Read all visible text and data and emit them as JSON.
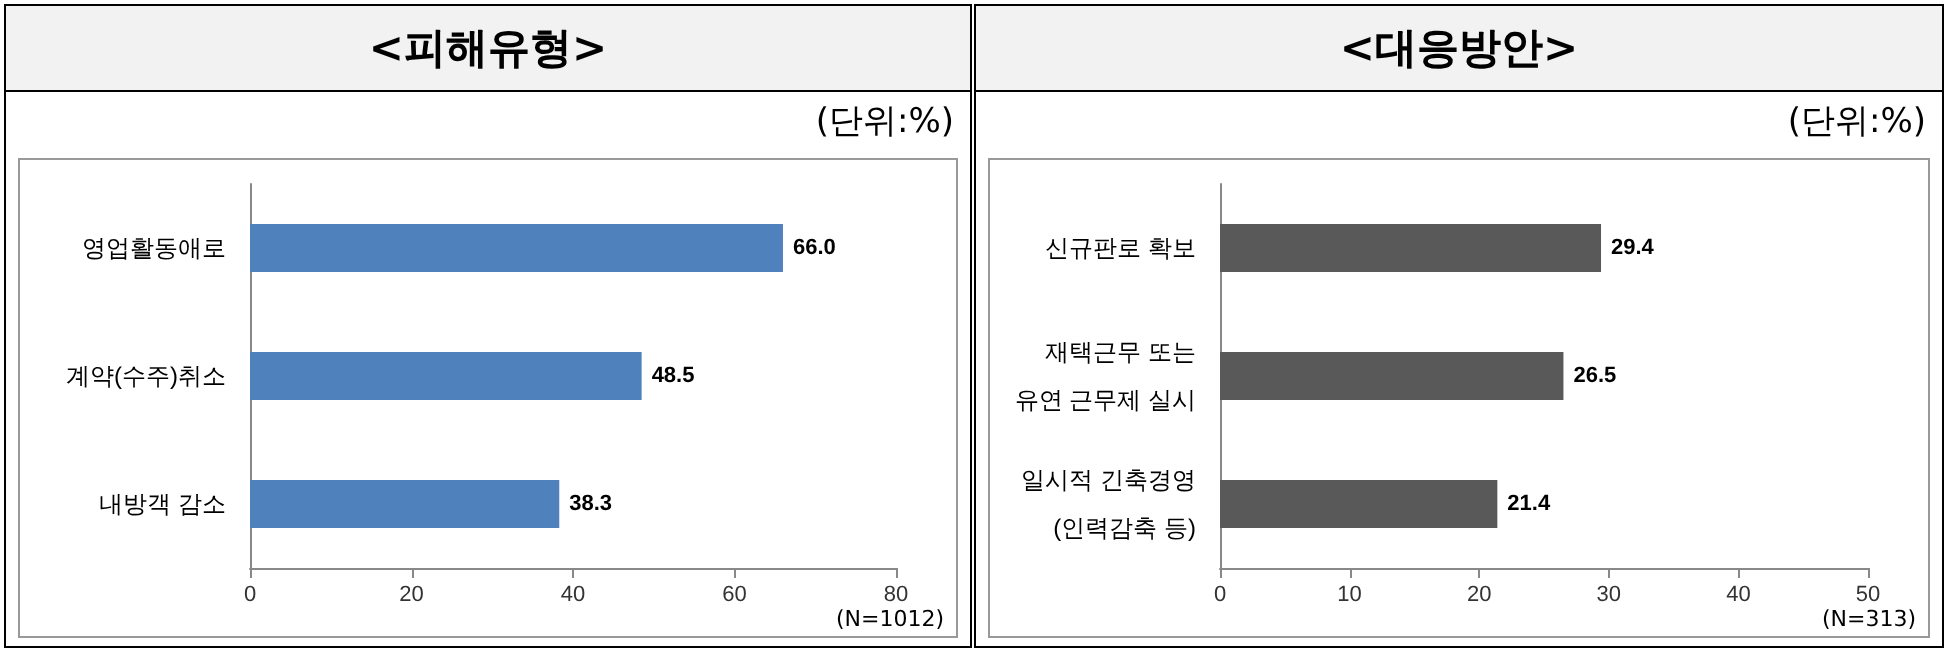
{
  "chart_data": [
    {
      "type": "bar",
      "title": "<피해유형>",
      "subtitle": "(단위:%)",
      "orientation": "horizontal",
      "categories": [
        "영업활동애로",
        "계약(수주)취소",
        "내방객 감소"
      ],
      "values": [
        66.0,
        48.5,
        38.3
      ],
      "value_labels": [
        "66.0",
        "48.5",
        "38.3"
      ],
      "color": "#4f81bd",
      "xlim": [
        0,
        80
      ],
      "xticks": [
        0,
        20,
        40,
        60,
        80
      ],
      "grid": false,
      "annotations": [
        "(N=1012)"
      ]
    },
    {
      "type": "bar",
      "title": "<대응방안>",
      "subtitle": "(단위:%)",
      "orientation": "horizontal",
      "categories": [
        "신규판로 확보",
        "재택근무 또는\n유연 근무제 실시",
        "일시적 긴축경영\n(인력감축 등)"
      ],
      "values": [
        29.4,
        26.5,
        21.4
      ],
      "value_labels": [
        "29.4",
        "26.5",
        "21.4"
      ],
      "color": "#595959",
      "xlim": [
        0,
        50
      ],
      "xticks": [
        0,
        10,
        20,
        30,
        40,
        50
      ],
      "grid": false,
      "annotations": [
        "(N=313)"
      ]
    }
  ]
}
